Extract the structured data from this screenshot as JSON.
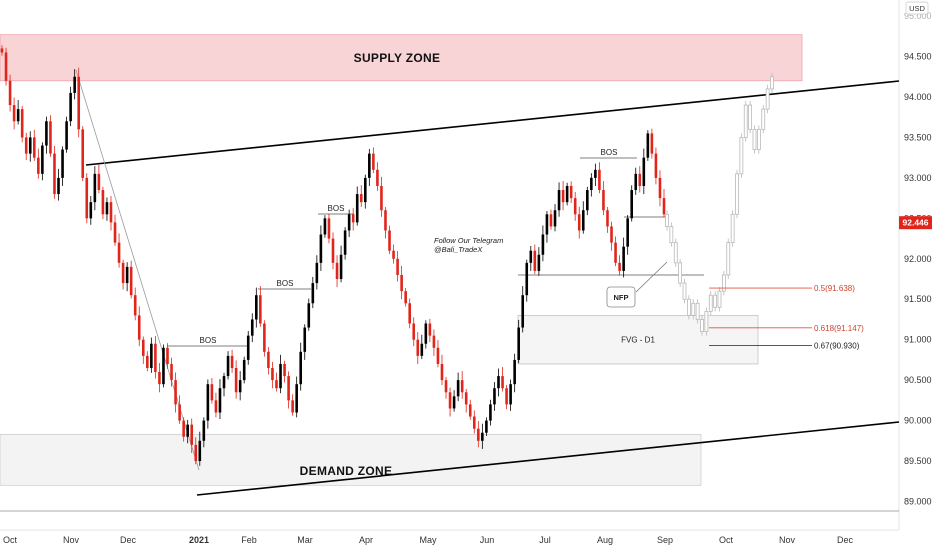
{
  "chart_data": {
    "type": "candlestick",
    "symbol_currency": "USD",
    "last_price": "92.446",
    "y_ticks": [
      "94.500",
      "94.000",
      "93.500",
      "93.000",
      "92.500",
      "92.000",
      "91.500",
      "91.000",
      "90.500",
      "90.000",
      "89.500",
      "89.000"
    ],
    "x_ticks": [
      "Oct",
      "Nov",
      "Dec",
      "2021",
      "Feb",
      "Mar",
      "Apr",
      "May",
      "Jun",
      "Jul",
      "Aug",
      "Sep",
      "Oct",
      "Nov",
      "Dec"
    ],
    "ylim": [
      88.87,
      95.1
    ],
    "zones": {
      "supply": {
        "label": "SUPPLY ZONE",
        "y_range": [
          94.2,
          94.77
        ],
        "x_range": [
          "Sep 2020",
          "late Oct 2021"
        ]
      },
      "demand": {
        "label": "DEMAND ZONE",
        "y_range": [
          89.2,
          89.83
        ],
        "x_range": [
          "Sep 2020",
          "late Sep 2021"
        ]
      },
      "fvg": {
        "label": "FVG - D1",
        "y_range": [
          90.7,
          91.3
        ],
        "x_range": [
          "mid Jun 2021",
          "early Oct 2021"
        ]
      }
    },
    "bos_labels": [
      "BOS",
      "BOS",
      "BOS",
      "BOS"
    ],
    "fib_levels": [
      {
        "label": "0.5(91.638)",
        "value": 91.638,
        "color": "#e0553d"
      },
      {
        "label": "0.618(91.147)",
        "value": 91.147,
        "color": "#e0553d"
      },
      {
        "label": "0.67(90.930)",
        "value": 90.93,
        "color": "#222222"
      }
    ],
    "annotations": {
      "telegram_line1": "Follow Our Telegram",
      "telegram_line2": "@Bali_TradeX",
      "nfp": "NFP"
    },
    "colors": {
      "up": "#000000",
      "down": "#e0261b",
      "projection": "#b8b8b8",
      "supply": "#f8d4d6",
      "demand": "#f3f3f3",
      "price_tag": "#e0261b"
    },
    "closes": [
      94.55,
      94.2,
      93.9,
      93.7,
      93.85,
      93.5,
      93.3,
      93.5,
      93.25,
      93.05,
      93.4,
      93.7,
      93.3,
      92.8,
      93.0,
      93.35,
      93.7,
      94.05,
      94.25,
      93.6,
      93.0,
      92.5,
      92.7,
      93.05,
      92.85,
      92.55,
      92.7,
      92.45,
      92.2,
      91.95,
      91.7,
      91.9,
      91.55,
      91.3,
      91.0,
      90.8,
      90.65,
      90.95,
      90.6,
      90.45,
      90.9,
      90.7,
      90.5,
      90.2,
      90.0,
      89.8,
      89.95,
      89.7,
      89.5,
      89.75,
      90.0,
      90.45,
      90.25,
      90.1,
      90.4,
      90.55,
      90.8,
      90.65,
      90.35,
      90.5,
      90.75,
      91.05,
      91.25,
      91.55,
      91.2,
      90.85,
      90.65,
      90.5,
      90.4,
      90.7,
      90.55,
      90.25,
      90.1,
      90.45,
      90.85,
      91.15,
      91.45,
      91.7,
      91.95,
      92.3,
      92.5,
      92.25,
      91.95,
      91.75,
      92.05,
      92.35,
      92.55,
      92.45,
      92.8,
      92.7,
      93.0,
      93.3,
      93.1,
      92.9,
      92.6,
      92.35,
      92.1,
      92.0,
      91.8,
      91.6,
      91.45,
      91.2,
      91.0,
      90.8,
      90.95,
      91.2,
      91.05,
      90.9,
      90.7,
      90.5,
      90.35,
      90.15,
      90.3,
      90.5,
      90.35,
      90.2,
      90.05,
      89.9,
      89.75,
      89.85,
      90.0,
      90.2,
      90.4,
      90.55,
      90.4,
      90.2,
      90.45,
      90.75,
      91.15,
      91.55,
      91.95,
      92.1,
      91.85,
      92.05,
      92.3,
      92.55,
      92.4,
      92.6,
      92.85,
      92.7,
      92.9,
      92.75,
      92.55,
      92.35,
      92.6,
      92.85,
      93.0,
      93.1,
      92.85,
      92.6,
      92.4,
      92.2,
      91.95,
      91.85,
      92.15,
      92.5,
      92.85,
      93.05,
      92.9,
      93.25,
      93.55,
      93.3,
      93.0,
      92.75,
      92.55
    ],
    "projection_closes": [
      92.4,
      92.2,
      91.95,
      91.7,
      91.5,
      91.3,
      91.45,
      91.25,
      91.1,
      91.35,
      91.55,
      91.4,
      91.6,
      91.8,
      92.2,
      92.55,
      93.05,
      93.5,
      93.9,
      93.6,
      93.35,
      93.6,
      93.85,
      94.1,
      94.25
    ]
  }
}
